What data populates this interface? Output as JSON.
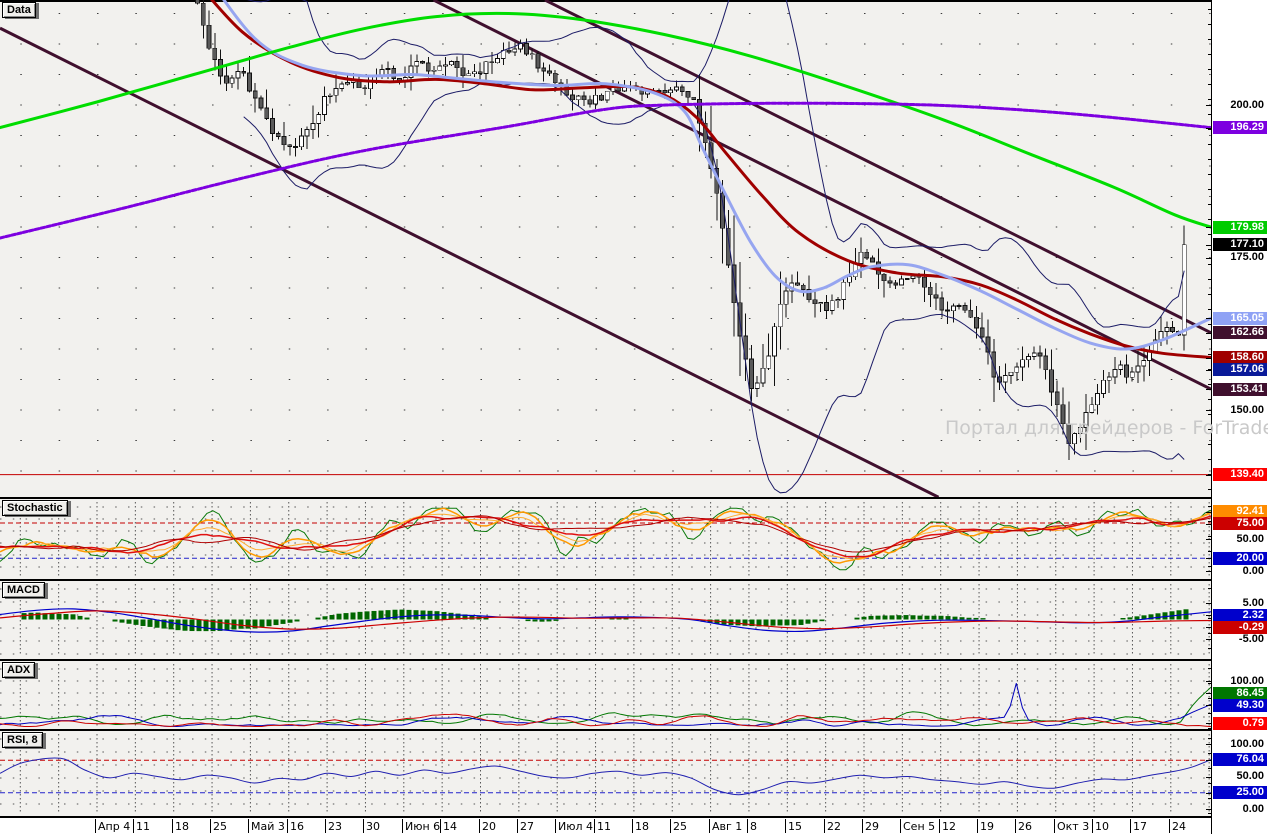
{
  "panel_labels": {
    "main": "Data",
    "stochastic": "Stochastic",
    "macd": "MACD",
    "adx": "ADX",
    "rsi": "RSI, 8"
  },
  "watermark_text": "Портал для трейдеров - ForTrader.ru",
  "colors": {
    "panel_bg": "#f2f1ee",
    "grid_dot": "#3c3c3c",
    "candle_up": "#ffffff",
    "candle_down": "#5a5a5a",
    "candle_outline": "#111111",
    "band": "#1c1c66",
    "ma_green": "#00dd00",
    "ma_violet": "#7d00e0",
    "ma_darkred": "#a00000",
    "ma_periwinkle": "#96a5f0",
    "trendline": "#40102e",
    "level_red": "#c40000",
    "level_blue": "#2222cc",
    "stoch_green": "#0c7a0c",
    "stoch_orange1": "#ff9900",
    "stoch_orange2": "#ffad33",
    "stoch_red1": "#e01010",
    "stoch_red2": "#b00000",
    "macd_line": "#0000cc",
    "macd_signal": "#cc0000",
    "macd_hist": "#006600",
    "adx_green": "#007700",
    "adx_blue": "#0000bb",
    "adx_red": "#cc0000",
    "rsi_line": "#2020b0"
  },
  "chart_data": {
    "type": "candlestick",
    "x_labels": [
      "Апр 4",
      "11",
      "18",
      "25",
      "Май 3",
      "16",
      "23",
      "30",
      "Июн 6",
      "14",
      "20",
      "27",
      "Июл 4",
      "11",
      "18",
      "25",
      "Авг 1",
      "8",
      "15",
      "22",
      "29",
      "Сен 5",
      "12",
      "19",
      "26",
      "Окт 3",
      "10",
      "17",
      "24"
    ],
    "price_axis": {
      "min_visible": 135.7,
      "max_visible": 217.2,
      "gridline_step": 5,
      "last_price": 177.1
    },
    "y_axis_labels": {
      "main": [
        {
          "value": 200.0,
          "text": "200.00",
          "bg": null
        },
        {
          "value": 196.29,
          "text": "196.29",
          "bg": "#7d00e0"
        },
        {
          "value": 179.98,
          "text": "179.98",
          "bg": "#00cc00"
        },
        {
          "value": 177.1,
          "text": "177.10",
          "bg": "#000000"
        },
        {
          "value": 175.0,
          "text": "175.00",
          "bg": null
        },
        {
          "value": 165.05,
          "text": "165.05",
          "bg": "#8fa2f5"
        },
        {
          "value": 162.66,
          "text": "162.66",
          "bg": "#40102e"
        },
        {
          "value": 158.6,
          "text": "158.60",
          "bg": "#a00000"
        },
        {
          "value": 157.06,
          "text": "157.06",
          "bg": "#0a1a99"
        },
        {
          "value": 153.41,
          "text": "153.41",
          "bg": "#40102e"
        },
        {
          "value": 150.0,
          "text": "150.00",
          "bg": null
        },
        {
          "value": 139.4,
          "text": "139.40",
          "bg": "#ff0000"
        }
      ],
      "stochastic": [
        {
          "value": 92.41,
          "text": "92.41",
          "bg": "#ff8c00"
        },
        {
          "value": 75.0,
          "text": "75.00",
          "bg": "#cc0000"
        },
        {
          "value": 50.0,
          "text": "50.00",
          "bg": null
        },
        {
          "value": 20.0,
          "text": "20.00",
          "bg": "#0000cc"
        },
        {
          "value": 0.0,
          "text": "0.00",
          "bg": null
        }
      ],
      "macd": [
        {
          "value": 5.0,
          "text": "5.00",
          "bg": null
        },
        {
          "value": 2.32,
          "text": "2.32",
          "bg": "#0000cc"
        },
        {
          "value": -0.29,
          "text": "-0.29",
          "bg": "#cc0000"
        },
        {
          "value": -5.0,
          "text": "-5.00",
          "bg": null
        }
      ],
      "adx": [
        {
          "value": 100.0,
          "text": "100.00",
          "bg": null
        },
        {
          "value": 86.45,
          "text": "86.45",
          "bg": "#007700"
        },
        {
          "value": 49.3,
          "text": "49.30",
          "bg": "#0000cc"
        },
        {
          "value": 0.79,
          "text": "0.79",
          "bg": "#ff0000"
        }
      ],
      "rsi": [
        {
          "value": 100.0,
          "text": "100.00",
          "bg": null
        },
        {
          "value": 76.04,
          "text": "76.04",
          "bg": "#0000cc"
        },
        {
          "value": 50.0,
          "text": "50.00",
          "bg": null
        },
        {
          "value": 25.0,
          "text": "25.00",
          "bg": "#0000cc"
        },
        {
          "value": 0.0,
          "text": "0.00",
          "bg": null
        }
      ]
    },
    "horizontal_level_main": 139.4,
    "trendlines": [
      {
        "p1": [
          0.0,
          212.6
        ],
        "p2": [
          0.775,
          135.7
        ]
      },
      {
        "p1": [
          0.358,
          217.2
        ],
        "p2": [
          1.0,
          153.41
        ]
      },
      {
        "p1": [
          0.45,
          217.2
        ],
        "p2": [
          1.0,
          162.66
        ]
      }
    ],
    "price_close_anchors": [
      [
        0.163,
        216.5
      ],
      [
        0.17,
        211
      ],
      [
        0.178,
        207
      ],
      [
        0.188,
        203
      ],
      [
        0.198,
        206
      ],
      [
        0.21,
        201
      ],
      [
        0.225,
        196
      ],
      [
        0.24,
        192.5
      ],
      [
        0.255,
        196
      ],
      [
        0.268,
        201
      ],
      [
        0.282,
        204
      ],
      [
        0.3,
        203
      ],
      [
        0.315,
        206
      ],
      [
        0.33,
        204
      ],
      [
        0.345,
        207
      ],
      [
        0.357,
        205
      ],
      [
        0.37,
        207.5
      ],
      [
        0.385,
        204.5
      ],
      [
        0.398,
        206
      ],
      [
        0.412,
        208
      ],
      [
        0.428,
        210
      ],
      [
        0.443,
        207
      ],
      [
        0.458,
        204
      ],
      [
        0.472,
        201.5
      ],
      [
        0.487,
        200.5
      ],
      [
        0.502,
        202
      ],
      [
        0.517,
        203
      ],
      [
        0.532,
        201.5
      ],
      [
        0.547,
        202.5
      ],
      [
        0.562,
        203
      ],
      [
        0.573,
        200.5
      ],
      [
        0.583,
        194
      ],
      [
        0.593,
        184
      ],
      [
        0.603,
        172
      ],
      [
        0.613,
        160
      ],
      [
        0.622,
        152.5
      ],
      [
        0.633,
        158
      ],
      [
        0.643,
        166
      ],
      [
        0.653,
        171.5
      ],
      [
        0.663,
        170
      ],
      [
        0.673,
        167.5
      ],
      [
        0.683,
        166.5
      ],
      [
        0.693,
        169
      ],
      [
        0.703,
        173
      ],
      [
        0.713,
        176
      ],
      [
        0.723,
        173.5
      ],
      [
        0.733,
        170.5
      ],
      [
        0.743,
        171
      ],
      [
        0.753,
        172.5
      ],
      [
        0.763,
        170
      ],
      [
        0.773,
        168
      ],
      [
        0.783,
        166
      ],
      [
        0.793,
        168
      ],
      [
        0.803,
        165
      ],
      [
        0.813,
        161
      ],
      [
        0.823,
        153.5
      ],
      [
        0.833,
        156
      ],
      [
        0.843,
        158.5
      ],
      [
        0.853,
        160
      ],
      [
        0.863,
        157
      ],
      [
        0.873,
        150.5
      ],
      [
        0.883,
        144.5
      ],
      [
        0.893,
        147
      ],
      [
        0.903,
        152
      ],
      [
        0.913,
        155
      ],
      [
        0.923,
        157.5
      ],
      [
        0.933,
        155.5
      ],
      [
        0.943,
        158
      ],
      [
        0.953,
        161
      ],
      [
        0.963,
        163.5
      ],
      [
        0.973,
        162
      ],
      [
        0.983,
        166
      ],
      [
        0.993,
        172
      ],
      [
        1.0,
        177.1
      ]
    ],
    "ma_green_anchors": [
      [
        0,
        196.3
      ],
      [
        0.08,
        200.5
      ],
      [
        0.16,
        205
      ],
      [
        0.24,
        209.5
      ],
      [
        0.3,
        212.5
      ],
      [
        0.36,
        214.5
      ],
      [
        0.42,
        215
      ],
      [
        0.48,
        214
      ],
      [
        0.55,
        211.5
      ],
      [
        0.62,
        208
      ],
      [
        0.7,
        203
      ],
      [
        0.78,
        197.5
      ],
      [
        0.85,
        192
      ],
      [
        0.92,
        186.5
      ],
      [
        0.97,
        182
      ],
      [
        1.0,
        179.98
      ]
    ],
    "ma_violet_anchors": [
      [
        0,
        178.2
      ],
      [
        0.1,
        183
      ],
      [
        0.2,
        188
      ],
      [
        0.3,
        192.5
      ],
      [
        0.42,
        196.5
      ],
      [
        0.5,
        199.3
      ],
      [
        0.55,
        200
      ],
      [
        0.65,
        200.3
      ],
      [
        0.75,
        200.1
      ],
      [
        0.82,
        199.5
      ],
      [
        0.9,
        198.3
      ],
      [
        1.0,
        196.29
      ]
    ],
    "ma_darkred_anchors": [
      [
        0.163,
        220
      ],
      [
        0.2,
        212
      ],
      [
        0.24,
        207
      ],
      [
        0.28,
        204.5
      ],
      [
        0.32,
        203.8
      ],
      [
        0.36,
        204.2
      ],
      [
        0.4,
        203.5
      ],
      [
        0.44,
        202.5
      ],
      [
        0.48,
        202.8
      ],
      [
        0.52,
        203
      ],
      [
        0.55,
        201.5
      ],
      [
        0.575,
        198
      ],
      [
        0.6,
        192
      ],
      [
        0.63,
        185
      ],
      [
        0.66,
        179
      ],
      [
        0.7,
        174.5
      ],
      [
        0.74,
        172.5
      ],
      [
        0.78,
        171.8
      ],
      [
        0.81,
        170.5
      ],
      [
        0.84,
        168
      ],
      [
        0.87,
        165
      ],
      [
        0.9,
        162.5
      ],
      [
        0.93,
        160.5
      ],
      [
        0.96,
        159.3
      ],
      [
        1.0,
        158.6
      ]
    ],
    "ma_periwinkle_anchors": [
      [
        0.168,
        222
      ],
      [
        0.21,
        211
      ],
      [
        0.25,
        206.5
      ],
      [
        0.3,
        204.8
      ],
      [
        0.34,
        205
      ],
      [
        0.38,
        204.3
      ],
      [
        0.42,
        203.6
      ],
      [
        0.46,
        203.2
      ],
      [
        0.5,
        203.5
      ],
      [
        0.54,
        202
      ],
      [
        0.565,
        199
      ],
      [
        0.58,
        193
      ],
      [
        0.6,
        185
      ],
      [
        0.62,
        177.5
      ],
      [
        0.64,
        172
      ],
      [
        0.66,
        169.5
      ],
      [
        0.68,
        170
      ],
      [
        0.7,
        172
      ],
      [
        0.72,
        173.5
      ],
      [
        0.75,
        173.8
      ],
      [
        0.78,
        172
      ],
      [
        0.81,
        169.5
      ],
      [
        0.84,
        166.5
      ],
      [
        0.87,
        163.5
      ],
      [
        0.9,
        161
      ],
      [
        0.93,
        160
      ],
      [
        0.96,
        161.5
      ],
      [
        1.0,
        165.05
      ]
    ],
    "stochastic": {
      "current": 92.41,
      "upper_level": 75,
      "lower_level": 20,
      "seed": 7,
      "line_targets": [
        95,
        92.41,
        90,
        86,
        83
      ]
    },
    "macd": {
      "current_macd": 2.32,
      "current_signal": -0.29,
      "macd_anchors": [
        [
          0,
          1.5
        ],
        [
          0.03,
          2.8
        ],
        [
          0.06,
          3.2
        ],
        [
          0.09,
          2.2
        ],
        [
          0.12,
          0.5
        ],
        [
          0.15,
          -1.5
        ],
        [
          0.18,
          -3
        ],
        [
          0.21,
          -3.8
        ],
        [
          0.24,
          -3.5
        ],
        [
          0.27,
          -2
        ],
        [
          0.3,
          -0.5
        ],
        [
          0.33,
          0.8
        ],
        [
          0.36,
          1.4
        ],
        [
          0.39,
          1.2
        ],
        [
          0.42,
          0.6
        ],
        [
          0.45,
          0.2
        ],
        [
          0.48,
          0.5
        ],
        [
          0.51,
          0.8
        ],
        [
          0.54,
          0.6
        ],
        [
          0.57,
          0.0
        ],
        [
          0.6,
          -1.8
        ],
        [
          0.63,
          -3.2
        ],
        [
          0.66,
          -3.6
        ],
        [
          0.69,
          -2.8
        ],
        [
          0.72,
          -1.5
        ],
        [
          0.75,
          -0.6
        ],
        [
          0.78,
          -0.2
        ],
        [
          0.81,
          -0.3
        ],
        [
          0.84,
          -0.5
        ],
        [
          0.87,
          -0.8
        ],
        [
          0.9,
          -1.0
        ],
        [
          0.93,
          -0.5
        ],
        [
          0.96,
          0.8
        ],
        [
          1.0,
          2.32
        ]
      ],
      "signal_anchors": [
        [
          0,
          0.5
        ],
        [
          0.04,
          1.8
        ],
        [
          0.08,
          2.6
        ],
        [
          0.12,
          1.8
        ],
        [
          0.16,
          0.2
        ],
        [
          0.2,
          -1.8
        ],
        [
          0.24,
          -2.9
        ],
        [
          0.28,
          -2.6
        ],
        [
          0.32,
          -1.4
        ],
        [
          0.36,
          -0.2
        ],
        [
          0.4,
          0.6
        ],
        [
          0.44,
          0.7
        ],
        [
          0.48,
          0.4
        ],
        [
          0.52,
          0.5
        ],
        [
          0.56,
          0.4
        ],
        [
          0.6,
          -0.8
        ],
        [
          0.64,
          -2.2
        ],
        [
          0.68,
          -2.8
        ],
        [
          0.72,
          -2.2
        ],
        [
          0.76,
          -1.2
        ],
        [
          0.8,
          -0.6
        ],
        [
          0.84,
          -0.5
        ],
        [
          0.88,
          -0.8
        ],
        [
          0.92,
          -0.9
        ],
        [
          0.96,
          -0.5
        ],
        [
          1.0,
          -0.29
        ]
      ]
    },
    "adx": {
      "current_green": 86.45,
      "current_blue": 49.3,
      "current_red": 0.79,
      "seed": 11,
      "spike_x": 0.838,
      "spike_value": 95
    },
    "rsi": {
      "period": 8,
      "current": 76.04,
      "upper_level": 75,
      "lower_level": 25,
      "anchors": [
        [
          0,
          55
        ],
        [
          0.02,
          72
        ],
        [
          0.05,
          78
        ],
        [
          0.07,
          60
        ],
        [
          0.09,
          48
        ],
        [
          0.11,
          55
        ],
        [
          0.13,
          50
        ],
        [
          0.15,
          45
        ],
        [
          0.17,
          52
        ],
        [
          0.19,
          48
        ],
        [
          0.21,
          40
        ],
        [
          0.23,
          47
        ],
        [
          0.25,
          45
        ],
        [
          0.27,
          55
        ],
        [
          0.29,
          50
        ],
        [
          0.31,
          58
        ],
        [
          0.33,
          52
        ],
        [
          0.35,
          60
        ],
        [
          0.37,
          55
        ],
        [
          0.39,
          62
        ],
        [
          0.41,
          66
        ],
        [
          0.43,
          58
        ],
        [
          0.45,
          50
        ],
        [
          0.47,
          48
        ],
        [
          0.49,
          55
        ],
        [
          0.51,
          58
        ],
        [
          0.53,
          52
        ],
        [
          0.55,
          56
        ],
        [
          0.57,
          48
        ],
        [
          0.59,
          30
        ],
        [
          0.61,
          22
        ],
        [
          0.63,
          30
        ],
        [
          0.65,
          42
        ],
        [
          0.67,
          40
        ],
        [
          0.69,
          46
        ],
        [
          0.71,
          52
        ],
        [
          0.73,
          48
        ],
        [
          0.75,
          50
        ],
        [
          0.77,
          45
        ],
        [
          0.79,
          42
        ],
        [
          0.81,
          38
        ],
        [
          0.83,
          42
        ],
        [
          0.85,
          35
        ],
        [
          0.87,
          32
        ],
        [
          0.89,
          40
        ],
        [
          0.91,
          46
        ],
        [
          0.93,
          45
        ],
        [
          0.95,
          52
        ],
        [
          0.97,
          58
        ],
        [
          0.985,
          65
        ],
        [
          1.0,
          76.04
        ]
      ]
    },
    "candles": {
      "count": 172,
      "start_x": 197.5,
      "step_x": 5.77,
      "seed": 5
    }
  }
}
